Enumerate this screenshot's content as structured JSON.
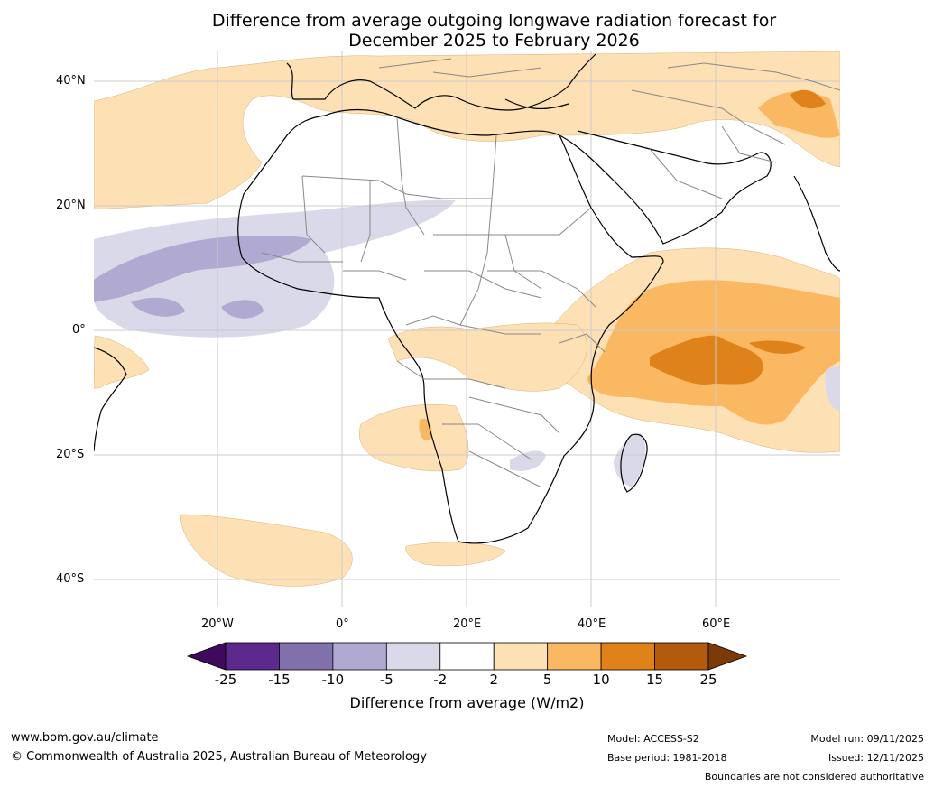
{
  "title_line1": "Difference from average outgoing longwave radiation forecast for",
  "title_line2": "December 2025 to February 2026",
  "lat_labels": [
    "40°N",
    "20°N",
    "0°",
    "20°S",
    "40°S"
  ],
  "lon_labels": [
    "20°W",
    "0°",
    "20°E",
    "40°E",
    "60°E"
  ],
  "colorbar": {
    "ticks": [
      "-25",
      "-15",
      "-10",
      "-5",
      "-2",
      "2",
      "5",
      "10",
      "15",
      "25"
    ],
    "colors": [
      "#3f0a5e",
      "#5b2a8c",
      "#8071ad",
      "#b0a9d1",
      "#d9d9ea",
      "#ffffff",
      "#fde0b4",
      "#fbb862",
      "#e0821a",
      "#b35a0d",
      "#7d3a06"
    ],
    "label": "Difference from average (W/m2)"
  },
  "footer": {
    "url": "www.bom.gov.au/climate",
    "copyright": "© Commonwealth of Australia 2025, Australian Bureau of Meteorology",
    "model": "Model: ACCESS-S2",
    "base_period": "Base period: 1981-2018",
    "model_run": "Model run: 09/11/2025",
    "issued": "Issued: 12/11/2025",
    "disclaimer": "Boundaries are not considered authoritative"
  }
}
